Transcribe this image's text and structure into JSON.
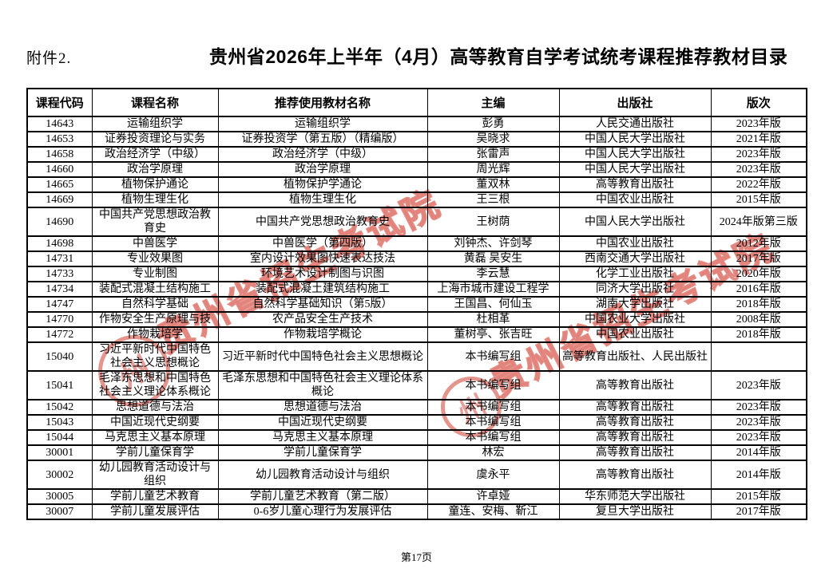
{
  "document": {
    "attachment_label": "附件2.",
    "title": "贵州省2026年上半年（4月）高等教育自学考试统考课程推荐教材目录",
    "page_number": "第17页"
  },
  "table": {
    "columns": [
      "课程代码",
      "课程名称",
      "推荐使用教材名称",
      "主编",
      "出版社",
      "版次"
    ],
    "rows": [
      {
        "code": "14643",
        "name": "运输组织学",
        "textbook": "运输组织学",
        "editor": "彭勇",
        "publisher": "人民交通出版社",
        "edition": "2023年版"
      },
      {
        "code": "14653",
        "name": "证券投资理论与实务",
        "textbook": "证券投资学（第五版）（精编版）",
        "editor": "吴晓求",
        "publisher": "中国人民大学出版社",
        "edition": "2021年版"
      },
      {
        "code": "14658",
        "name": "政治经济学（中级）",
        "textbook": "政治经济学（中级）",
        "editor": "张雷声",
        "publisher": "中国人民大学出版社",
        "edition": "2023年版"
      },
      {
        "code": "14660",
        "name": "政治学原理",
        "textbook": "政治学原理",
        "editor": "周光辉",
        "publisher": "中国人民大学出版社",
        "edition": "2023年版"
      },
      {
        "code": "14665",
        "name": "植物保护通论",
        "textbook": "植物保护学通论",
        "editor": "董双林",
        "publisher": "高等教育出版社",
        "edition": "2022年版"
      },
      {
        "code": "14669",
        "name": "植物生理生化",
        "textbook": "植物生理生化",
        "editor": "王三根",
        "publisher": "中国农业出版社",
        "edition": "2015年版"
      },
      {
        "code": "14690",
        "name": "中国共产党思想政治教育史",
        "textbook": "中国共产党思想政治教育史",
        "editor": "王树荫",
        "publisher": "中国人民大学出版社",
        "edition": "2024年版第三版"
      },
      {
        "code": "14698",
        "name": "中兽医学",
        "textbook": "中兽医学（第四版）",
        "editor": "刘钟杰、许剑琴",
        "publisher": "中国农业出版社",
        "edition": "2012年版"
      },
      {
        "code": "14731",
        "name": "专业效果图",
        "textbook": "室内设计效果图快速表达技法",
        "editor": "黄磊 吴安生",
        "publisher": "西南交通大学出版社",
        "edition": "2017年版"
      },
      {
        "code": "14733",
        "name": "专业制图",
        "textbook": "环境艺术设计制图与识图",
        "editor": "李云慧",
        "publisher": "化学工业出版社",
        "edition": "2020年版"
      },
      {
        "code": "14734",
        "name": "装配式混凝土结构施工",
        "textbook": "装配式混凝土建筑结构施工",
        "editor": "上海市城市建设工程学",
        "publisher": "同济大学出版社",
        "edition": "2016年版"
      },
      {
        "code": "14747",
        "name": "自然科学基础",
        "textbook": "自然科学基础知识（第5版）",
        "editor": "王国昌、何仙玉",
        "publisher": "湖南大学出版社",
        "edition": "2018年版"
      },
      {
        "code": "14770",
        "name": "作物安全生产原理与技",
        "textbook": "农产品安全生产技术",
        "editor": "杜相革",
        "publisher": "中国农业大学出版社",
        "edition": "2008年版"
      },
      {
        "code": "14772",
        "name": "作物栽培学",
        "textbook": "作物栽培学概论",
        "editor": "董树亭、张吉旺",
        "publisher": "中国农业出版社",
        "edition": "2018年版"
      },
      {
        "code": "15040",
        "name": "习近平新时代中国特色社会主义思想概论",
        "textbook": "习近平新时代中国特色社会主义思想概论",
        "editor": "本书编写组",
        "publisher": "高等教育出版社、人民出版社",
        "edition": ""
      },
      {
        "code": "15041",
        "name": "毛泽东思想和中国特色社会主义理论体系概论",
        "textbook": "毛泽东思想和中国特色社会主义理论体系概论",
        "editor": "本书编写组",
        "publisher": "高等教育出版社",
        "edition": "2023年版"
      },
      {
        "code": "15042",
        "name": "思想道德与法治",
        "textbook": "思想道德与法治",
        "editor": "本书编写组",
        "publisher": "高等教育出版社",
        "edition": "2023年版"
      },
      {
        "code": "15043",
        "name": "中国近现代史纲要",
        "textbook": "中国近现代史纲要",
        "editor": "本书编写组",
        "publisher": "高等教育出版社",
        "edition": "2023年版"
      },
      {
        "code": "15044",
        "name": "马克思主义基本原理",
        "textbook": "马克思主义基本原理",
        "editor": "本书编写组",
        "publisher": "高等教育出版社",
        "edition": "2023年版"
      },
      {
        "code": "30001",
        "name": "学前儿童保育学",
        "textbook": "学前儿童保育学",
        "editor": "林宏",
        "publisher": "高等教育出版社",
        "edition": "2014年版"
      },
      {
        "code": "30002",
        "name": "幼儿园教育活动设计与组织",
        "textbook": "幼儿园教育活动设计与组织",
        "editor": "虞永平",
        "publisher": "高等教育出版社",
        "edition": "2014年版"
      },
      {
        "code": "30005",
        "name": "学前儿童艺术教育",
        "textbook": "学前儿童艺术教育（第二版）",
        "editor": "许卓娅",
        "publisher": "华东师范大学出版社",
        "edition": "2015年版"
      },
      {
        "code": "30007",
        "name": "学前儿童发展评估",
        "textbook": "0-6岁儿童心理行为发展评估",
        "editor": "童连、安梅、靳江",
        "publisher": "复旦大学出版社",
        "edition": "2017年版"
      }
    ]
  },
  "watermark": {
    "text": "贵州省招生考试院",
    "seal_char": "州",
    "color": "#cd3e32"
  }
}
